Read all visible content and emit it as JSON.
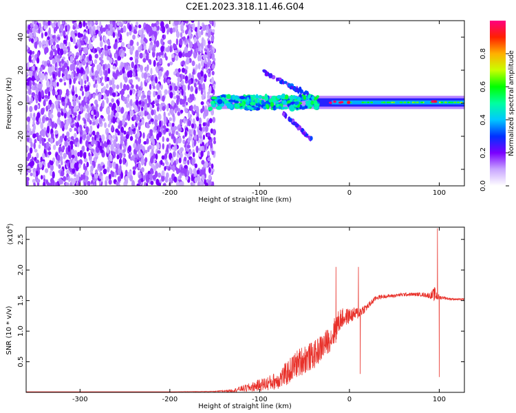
{
  "title": "C2E1.2023.318.11.46.G04",
  "colors": {
    "line": "#e8312a",
    "frame": "#000000"
  },
  "chart_data": [
    {
      "type": "heatmap",
      "xlabel": "Height of straight line (km)",
      "ylabel": "Frequency (Hz)",
      "xlim": [
        -360,
        128
      ],
      "ylim": [
        -50,
        50
      ],
      "xticks": [
        -300,
        -200,
        -100,
        0,
        100
      ],
      "yticks": [
        -40,
        -20,
        0,
        20,
        40
      ],
      "colorbar": {
        "label": "Normalized spectral amplitude",
        "range": [
          0,
          1
        ],
        "ticks": [
          "0.0",
          "0.2",
          "0.4",
          "0.6",
          "0.8"
        ],
        "stops": [
          [
            0.0,
            "#ffffff"
          ],
          [
            0.1,
            "#c9a6ff"
          ],
          [
            0.2,
            "#7a00ff"
          ],
          [
            0.3,
            "#0030ff"
          ],
          [
            0.4,
            "#00c8ff"
          ],
          [
            0.5,
            "#00ffa0"
          ],
          [
            0.6,
            "#00ff00"
          ],
          [
            0.7,
            "#c8ff00"
          ],
          [
            0.8,
            "#ffb000"
          ],
          [
            0.9,
            "#ff2000"
          ],
          [
            1.0,
            "#ff0080"
          ]
        ]
      },
      "regions": [
        {
          "name": "noise",
          "x": [
            -360,
            -150
          ],
          "y": [
            -50,
            50
          ],
          "amplitude": 0.15
        },
        {
          "name": "signal",
          "x": [
            -155,
            128
          ],
          "y_center": 0.5,
          "width_hz": 4,
          "amplitude": 0.45
        },
        {
          "name": "branch-up",
          "x": [
            -100,
            -45
          ],
          "y": [
            20,
            5
          ],
          "amplitude": 0.2
        },
        {
          "name": "branch-down",
          "x": [
            -75,
            -42
          ],
          "y": [
            -5,
            -22
          ],
          "amplitude": 0.2
        },
        {
          "name": "peak",
          "x": [
            -25,
            0
          ],
          "y": [
            0,
            1
          ],
          "amplitude": 0.9
        },
        {
          "name": "peak",
          "x": [
            92,
            96
          ],
          "y": [
            1,
            1
          ],
          "amplitude": 0.9
        }
      ]
    },
    {
      "type": "line",
      "xlabel": "Height of straight line (km)",
      "ylabel": "SNR (10 * v/v)",
      "scale_label": "(x10",
      "scale_exp": "4",
      "scale_close": ")",
      "xlim": [
        -360,
        128
      ],
      "ylim": [
        0,
        2.7
      ],
      "xticks": [
        -300,
        -200,
        -100,
        0,
        100
      ],
      "yticks": [
        0.5,
        1.0,
        1.5,
        2.0,
        2.5
      ],
      "series": [
        {
          "x": [
            -360,
            -300,
            -250,
            -200,
            -150,
            -130,
            -120,
            -110,
            -100,
            -90,
            -80,
            -70,
            -60,
            -50,
            -40,
            -30,
            -20,
            -15,
            -10,
            0,
            10,
            20,
            30,
            40,
            50,
            60,
            70,
            80,
            90,
            95,
            100,
            105,
            110,
            120,
            128
          ],
          "y": [
            0.01,
            0.01,
            0.01,
            0.01,
            0.015,
            0.03,
            0.06,
            0.08,
            0.12,
            0.15,
            0.2,
            0.3,
            0.45,
            0.55,
            0.6,
            0.75,
            0.9,
            1.05,
            1.2,
            1.25,
            1.3,
            1.4,
            1.55,
            1.57,
            1.58,
            1.6,
            1.6,
            1.6,
            1.58,
            1.6,
            1.55,
            1.55,
            1.53,
            1.52,
            1.52
          ],
          "noise": [
            0,
            0,
            0,
            0,
            0.01,
            0.05,
            0.1,
            0.15,
            0.2,
            0.25,
            0.3,
            0.4,
            0.45,
            0.5,
            0.45,
            0.45,
            0.4,
            0.5,
            0.35,
            0.25,
            0.2,
            0.12,
            0.08,
            0.06,
            0.06,
            0.06,
            0.06,
            0.06,
            0.1,
            0.25,
            0.08,
            0.05,
            0.04,
            0.03,
            0.03
          ],
          "spikes": [
            [
              10,
              2.05
            ],
            [
              -15,
              2.05
            ],
            [
              12,
              0.3
            ],
            [
              98,
              2.68
            ],
            [
              100,
              0.25
            ]
          ]
        }
      ]
    }
  ]
}
